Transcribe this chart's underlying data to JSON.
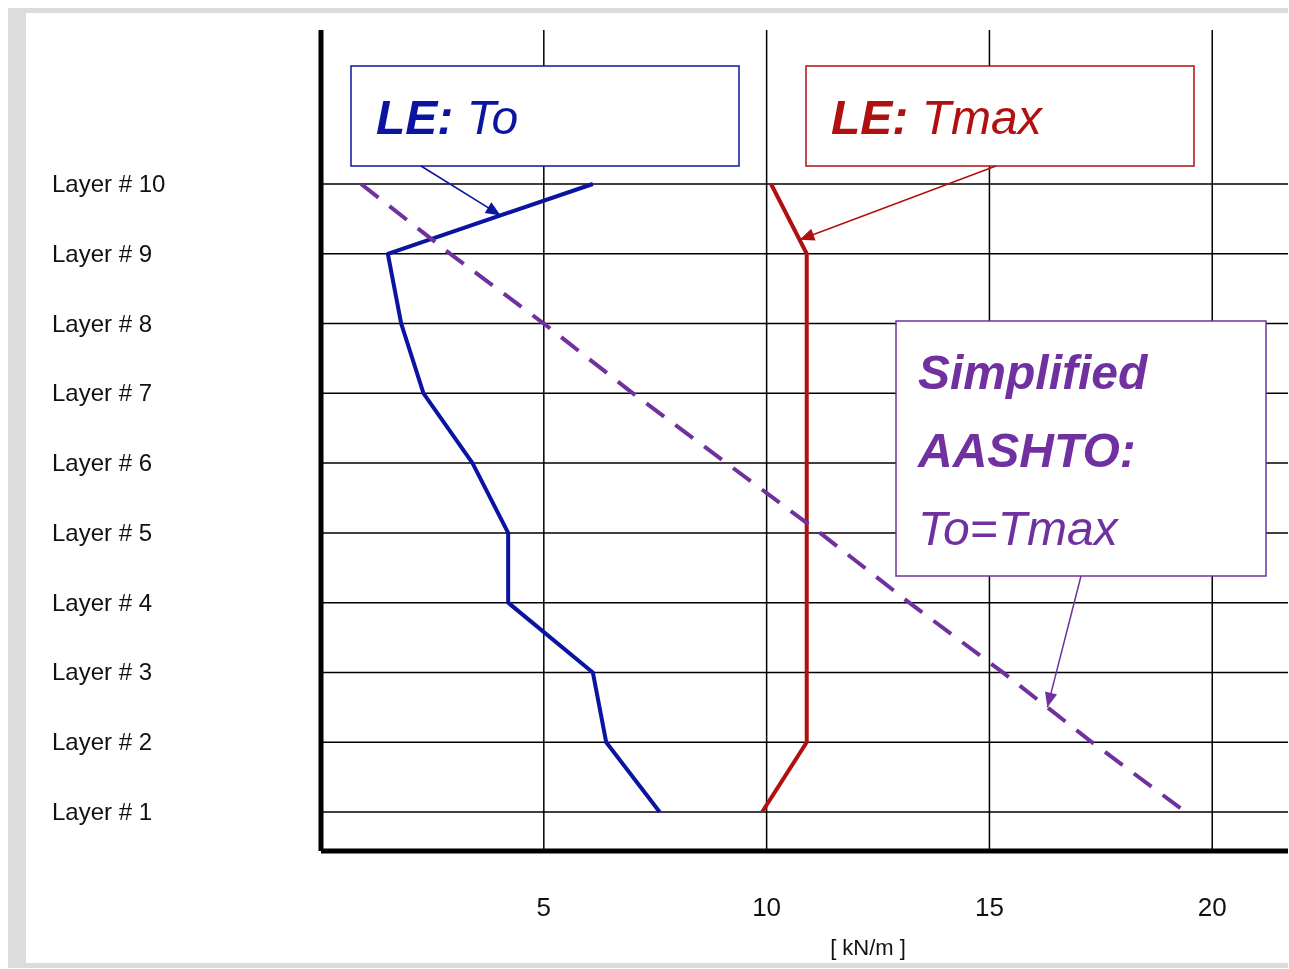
{
  "chart_data": {
    "type": "line",
    "orientation": "horizontal",
    "xlabel": "[ kN/m ]",
    "categories": [
      "Layer # 10",
      "Layer # 9",
      "Layer # 8",
      "Layer # 7",
      "Layer # 6",
      "Layer # 5",
      "Layer # 4",
      "Layer # 3",
      "Layer # 2",
      "Layer # 1"
    ],
    "series": [
      {
        "name": "LE: To",
        "color": "#0a14a0",
        "line_style": "solid",
        "values": [
          6.1,
          1.5,
          1.8,
          2.3,
          3.4,
          4.2,
          4.2,
          6.1,
          6.4,
          7.6
        ]
      },
      {
        "name": "LE: Tmax",
        "color": "#b01010",
        "line_style": "solid",
        "values": [
          10.1,
          10.9,
          10.9,
          10.9,
          10.9,
          10.9,
          10.9,
          10.9,
          10.9,
          9.9
        ]
      },
      {
        "name": "Simplified AASHTO: To=Tmax",
        "color": "#7030a0",
        "line_style": "dashed",
        "values": [
          0.9,
          2.9,
          5.0,
          7.0,
          9.1,
          11.2,
          13.2,
          15.3,
          17.3,
          19.4
        ]
      }
    ],
    "xlim": [
      0,
      21.7
    ],
    "xticks": [
      5,
      10,
      15,
      20
    ],
    "grid": true,
    "marker": "none"
  }
}
